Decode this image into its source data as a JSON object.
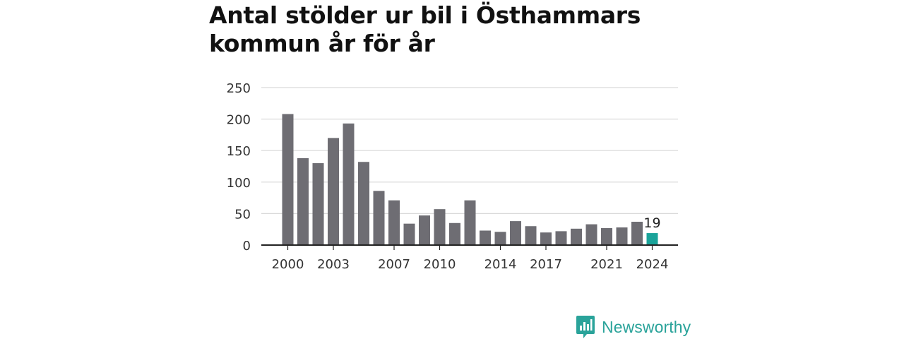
{
  "title": "Antal stölder ur bil i Östhammars kommun år för år",
  "brand": {
    "name": "Newsworthy",
    "color": "#2aa39a",
    "icon": "bar-chart-speech-bubble-icon"
  },
  "chart_data": {
    "type": "bar",
    "title": "Antal stölder ur bil i Östhammars kommun år för år",
    "xlabel": "",
    "ylabel": "",
    "ylim": [
      0,
      250
    ],
    "yticks": [
      0,
      50,
      100,
      150,
      200,
      250
    ],
    "grid": true,
    "legend": "none",
    "categories": [
      "2000",
      "2001",
      "2002",
      "2003",
      "2004",
      "2005",
      "2006",
      "2007",
      "2008",
      "2009",
      "2010",
      "2011",
      "2012",
      "2013",
      "2014",
      "2015",
      "2016",
      "2017",
      "2018",
      "2019",
      "2020",
      "2021",
      "2022",
      "2023",
      "2024"
    ],
    "xtick_labels": [
      "2000",
      "2003",
      "2007",
      "2010",
      "2014",
      "2017",
      "2021",
      "2024"
    ],
    "values": [
      208,
      138,
      130,
      170,
      193,
      132,
      86,
      71,
      34,
      47,
      57,
      35,
      71,
      23,
      21,
      38,
      30,
      20,
      22,
      26,
      33,
      27,
      28,
      37,
      19
    ],
    "colors": {
      "bar": "#6e6d73",
      "highlight": "#1aa39a",
      "grid": "#d9d9d9",
      "axis": "#222222",
      "text": "#333333"
    },
    "highlight_index": 24,
    "data_labels": [
      {
        "index": 24,
        "text": "19"
      }
    ]
  }
}
